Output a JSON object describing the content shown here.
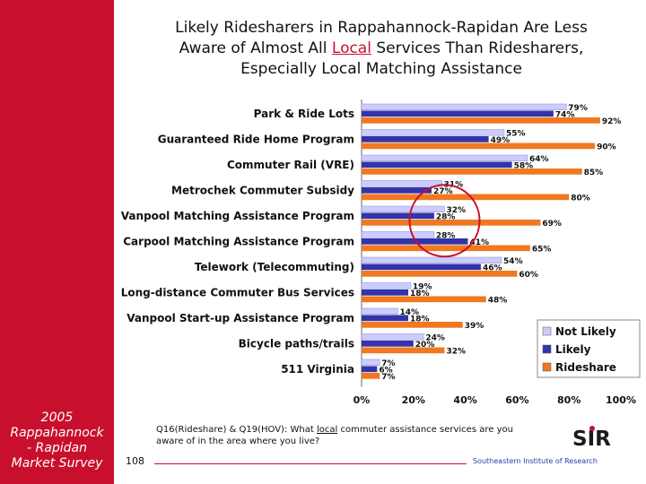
{
  "sidebar": {
    "caption_lines": [
      "2005",
      "Rappahannock",
      "- Rapidan",
      "Market Survey"
    ]
  },
  "slide": {
    "title_line1": "Likely Ridesharers in Rappahannock-Rapidan Are Less",
    "title_line2_pre": "Aware of Almost All ",
    "title_line2_u": "Local",
    "title_line2_post": " Services Than Ridesharers,",
    "title_line3": "Especially Local Matching Assistance",
    "footnote_pre": "Q16(Rideshare) & Q19(HOV): What ",
    "footnote_u": "local",
    "footnote_post": " commuter assistance services are you aware of in the area where you live?",
    "page_number": "108",
    "org_name": "Southeastern Institute of Research",
    "logo_text": "SIR"
  },
  "colors": {
    "brand_red": "#c8102e",
    "not_likely": "#ccccff",
    "likely": "#3333aa",
    "rideshare": "#f07820",
    "circle": "#c8102e"
  },
  "chart_data": {
    "type": "bar",
    "orientation": "horizontal",
    "categories": [
      "Park & Ride Lots",
      "Guaranteed Ride Home Program",
      "Commuter Rail (VRE)",
      "Metrochek Commuter Subsidy",
      "Vanpool Matching Assistance Program",
      "Carpool Matching Assistance Program",
      "Telework (Telecommuting)",
      "Long-distance Commuter Bus Services",
      "Vanpool Start-up Assistance Program",
      "Bicycle paths/trails",
      "511 Virginia"
    ],
    "series": [
      {
        "name": "Not Likely",
        "values": [
          79,
          55,
          64,
          31,
          32,
          28,
          54,
          19,
          14,
          24,
          7
        ]
      },
      {
        "name": "Likely",
        "values": [
          74,
          49,
          58,
          27,
          28,
          41,
          46,
          18,
          18,
          20,
          6
        ]
      },
      {
        "name": "Rideshare",
        "values": [
          92,
          90,
          85,
          80,
          69,
          65,
          60,
          48,
          39,
          32,
          7
        ]
      }
    ],
    "label_suffix": "%",
    "xlim": [
      0,
      100
    ],
    "x_ticks": [
      "0%",
      "20%",
      "40%",
      "60%",
      "80%",
      "100%"
    ],
    "legend_position": "right",
    "annotation": "circle highlighting Vanpool and Carpool Matching Assistance Program bars"
  }
}
